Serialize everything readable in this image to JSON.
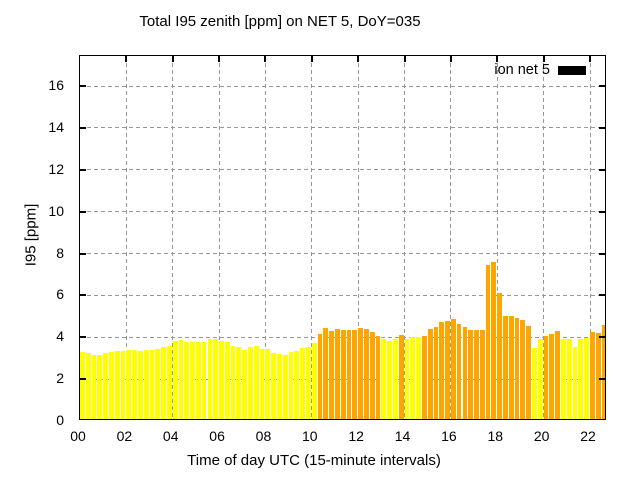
{
  "chart_data": {
    "type": "bar",
    "title": "Total I95 zenith [ppm] on NET 5, DoY=035",
    "xlabel": "Time of day UTC (15-minute intervals)",
    "ylabel": "I95 [ppm]",
    "legend": {
      "label": "ion net 5",
      "swatch_color": "#000000",
      "position": "top-right-inside"
    },
    "grid": true,
    "background": "#ffffff",
    "grid_color": "#999999",
    "x_ticks": [
      "00",
      "02",
      "04",
      "06",
      "08",
      "10",
      "12",
      "14",
      "16",
      "18",
      "20",
      "22"
    ],
    "y_ticks": [
      "0",
      "2",
      "4",
      "6",
      "8",
      "10",
      "12",
      "14",
      "16"
    ],
    "ylim": [
      0,
      17.4
    ],
    "x_hours_span": 22.73,
    "interval_minutes": 15,
    "colors": {
      "yellow": "#ffff00",
      "orange": "#ffa500"
    },
    "bars": [
      {
        "time": "00:00",
        "value": 3.2,
        "color": "yellow"
      },
      {
        "time": "00:15",
        "value": 3.14,
        "color": "yellow"
      },
      {
        "time": "00:30",
        "value": 3.05,
        "color": "yellow"
      },
      {
        "time": "00:45",
        "value": 3.08,
        "color": "yellow"
      },
      {
        "time": "01:00",
        "value": 3.14,
        "color": "yellow"
      },
      {
        "time": "01:15",
        "value": 3.2,
        "color": "yellow"
      },
      {
        "time": "01:30",
        "value": 3.25,
        "color": "yellow"
      },
      {
        "time": "01:45",
        "value": 3.25,
        "color": "yellow"
      },
      {
        "time": "02:00",
        "value": 3.31,
        "color": "yellow"
      },
      {
        "time": "02:15",
        "value": 3.31,
        "color": "yellow"
      },
      {
        "time": "02:30",
        "value": 3.24,
        "color": "yellow"
      },
      {
        "time": "02:45",
        "value": 3.28,
        "color": "yellow"
      },
      {
        "time": "03:00",
        "value": 3.32,
        "color": "yellow"
      },
      {
        "time": "03:15",
        "value": 3.36,
        "color": "yellow"
      },
      {
        "time": "03:30",
        "value": 3.42,
        "color": "yellow"
      },
      {
        "time": "03:45",
        "value": 3.47,
        "color": "yellow"
      },
      {
        "time": "04:00",
        "value": 3.72,
        "color": "yellow"
      },
      {
        "time": "04:15",
        "value": 3.77,
        "color": "yellow"
      },
      {
        "time": "04:30",
        "value": 3.68,
        "color": "yellow"
      },
      {
        "time": "04:45",
        "value": 3.7,
        "color": "yellow"
      },
      {
        "time": "05:00",
        "value": 3.68,
        "color": "yellow"
      },
      {
        "time": "05:15",
        "value": 3.7,
        "color": "yellow"
      },
      {
        "time": "05:30",
        "value": 3.8,
        "color": "yellow"
      },
      {
        "time": "05:45",
        "value": 3.83,
        "color": "yellow"
      },
      {
        "time": "06:00",
        "value": 3.72,
        "color": "yellow"
      },
      {
        "time": "06:15",
        "value": 3.68,
        "color": "yellow"
      },
      {
        "time": "06:30",
        "value": 3.5,
        "color": "yellow"
      },
      {
        "time": "06:45",
        "value": 3.42,
        "color": "yellow"
      },
      {
        "time": "07:00",
        "value": 3.3,
        "color": "yellow"
      },
      {
        "time": "07:15",
        "value": 3.45,
        "color": "yellow"
      },
      {
        "time": "07:30",
        "value": 3.48,
        "color": "yellow"
      },
      {
        "time": "07:45",
        "value": 3.35,
        "color": "yellow"
      },
      {
        "time": "08:00",
        "value": 3.33,
        "color": "yellow"
      },
      {
        "time": "08:15",
        "value": 3.15,
        "color": "yellow"
      },
      {
        "time": "08:30",
        "value": 3.1,
        "color": "yellow"
      },
      {
        "time": "08:45",
        "value": 3.05,
        "color": "yellow"
      },
      {
        "time": "09:00",
        "value": 3.18,
        "color": "yellow"
      },
      {
        "time": "09:15",
        "value": 3.27,
        "color": "yellow"
      },
      {
        "time": "09:30",
        "value": 3.37,
        "color": "yellow"
      },
      {
        "time": "09:45",
        "value": 3.42,
        "color": "yellow"
      },
      {
        "time": "10:00",
        "value": 3.65,
        "color": "yellow"
      },
      {
        "time": "10:15",
        "value": 4.08,
        "color": "orange"
      },
      {
        "time": "10:30",
        "value": 4.36,
        "color": "orange"
      },
      {
        "time": "10:45",
        "value": 4.2,
        "color": "orange"
      },
      {
        "time": "11:00",
        "value": 4.3,
        "color": "orange"
      },
      {
        "time": "11:15",
        "value": 4.27,
        "color": "orange"
      },
      {
        "time": "11:30",
        "value": 4.27,
        "color": "orange"
      },
      {
        "time": "11:45",
        "value": 4.25,
        "color": "orange"
      },
      {
        "time": "12:00",
        "value": 4.36,
        "color": "orange"
      },
      {
        "time": "12:15",
        "value": 4.31,
        "color": "orange"
      },
      {
        "time": "12:30",
        "value": 4.15,
        "color": "orange"
      },
      {
        "time": "12:45",
        "value": 3.95,
        "color": "orange"
      },
      {
        "time": "13:00",
        "value": 3.84,
        "color": "yellow"
      },
      {
        "time": "13:15",
        "value": 3.73,
        "color": "yellow"
      },
      {
        "time": "13:30",
        "value": 3.84,
        "color": "yellow"
      },
      {
        "time": "13:45",
        "value": 4.0,
        "color": "orange"
      },
      {
        "time": "14:00",
        "value": 3.84,
        "color": "yellow"
      },
      {
        "time": "14:15",
        "value": 3.9,
        "color": "yellow"
      },
      {
        "time": "14:30",
        "value": 3.94,
        "color": "yellow"
      },
      {
        "time": "14:45",
        "value": 3.97,
        "color": "orange"
      },
      {
        "time": "15:00",
        "value": 4.28,
        "color": "orange"
      },
      {
        "time": "15:15",
        "value": 4.41,
        "color": "orange"
      },
      {
        "time": "15:30",
        "value": 4.65,
        "color": "orange"
      },
      {
        "time": "15:45",
        "value": 4.69,
        "color": "orange"
      },
      {
        "time": "16:00",
        "value": 4.8,
        "color": "orange"
      },
      {
        "time": "16:15",
        "value": 4.54,
        "color": "orange"
      },
      {
        "time": "16:30",
        "value": 4.41,
        "color": "orange"
      },
      {
        "time": "16:45",
        "value": 4.25,
        "color": "orange"
      },
      {
        "time": "17:00",
        "value": 4.25,
        "color": "orange"
      },
      {
        "time": "17:15",
        "value": 4.25,
        "color": "orange"
      },
      {
        "time": "17:30",
        "value": 7.35,
        "color": "orange"
      },
      {
        "time": "17:45",
        "value": 7.5,
        "color": "orange"
      },
      {
        "time": "18:00",
        "value": 6.0,
        "color": "orange"
      },
      {
        "time": "18:15",
        "value": 4.92,
        "color": "orange"
      },
      {
        "time": "18:30",
        "value": 4.9,
        "color": "orange"
      },
      {
        "time": "18:45",
        "value": 4.84,
        "color": "orange"
      },
      {
        "time": "19:00",
        "value": 4.75,
        "color": "orange"
      },
      {
        "time": "19:15",
        "value": 4.45,
        "color": "orange"
      },
      {
        "time": "19:30",
        "value": 3.38,
        "color": "yellow"
      },
      {
        "time": "19:45",
        "value": 3.8,
        "color": "yellow"
      },
      {
        "time": "20:00",
        "value": 3.98,
        "color": "orange"
      },
      {
        "time": "20:15",
        "value": 4.06,
        "color": "orange"
      },
      {
        "time": "20:30",
        "value": 4.2,
        "color": "orange"
      },
      {
        "time": "20:45",
        "value": 3.84,
        "color": "yellow"
      },
      {
        "time": "21:00",
        "value": 3.8,
        "color": "yellow"
      },
      {
        "time": "21:15",
        "value": 3.42,
        "color": "yellow"
      },
      {
        "time": "21:30",
        "value": 3.84,
        "color": "yellow"
      },
      {
        "time": "21:45",
        "value": 3.88,
        "color": "yellow"
      },
      {
        "time": "22:00",
        "value": 4.16,
        "color": "orange"
      },
      {
        "time": "22:15",
        "value": 4.11,
        "color": "orange"
      },
      {
        "time": "22:30",
        "value": 4.47,
        "color": "orange"
      }
    ]
  }
}
